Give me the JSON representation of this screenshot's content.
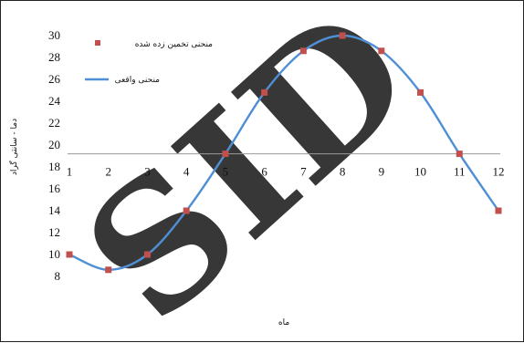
{
  "chart_data": {
    "type": "line",
    "x": [
      1,
      2,
      3,
      4,
      5,
      6,
      7,
      8,
      9,
      10,
      11,
      12
    ],
    "series": [
      {
        "name": "منحنی تخمین زده شده",
        "style": "markers",
        "color": "#c0504d",
        "values": [
          10,
          8.6,
          10,
          14,
          19.2,
          24.8,
          28.6,
          30,
          28.6,
          24.8,
          19.2,
          14
        ]
      },
      {
        "name": "منحنی واقعی",
        "style": "line",
        "color": "#4f8fd5",
        "values": [
          10,
          8.6,
          10,
          14,
          19.2,
          24.8,
          28.6,
          30,
          28.6,
          24.8,
          19.2,
          14
        ]
      }
    ],
    "x_ticks": [
      "1",
      "2",
      "3",
      "4",
      "5",
      "6",
      "7",
      "8",
      "9",
      "10",
      "11",
      "12"
    ],
    "y_ticks": [
      "8",
      "10",
      "12",
      "14",
      "16",
      "18",
      "20",
      "22",
      "24",
      "26",
      "28",
      "30"
    ],
    "xlabel": "ماه",
    "ylabel": "دما - سانتی گراد",
    "ylim": [
      8,
      30
    ],
    "xlim": [
      1,
      12
    ],
    "x_axis_crosses_at": 19.2,
    "legend_position": "top-left",
    "watermark": "SID"
  }
}
